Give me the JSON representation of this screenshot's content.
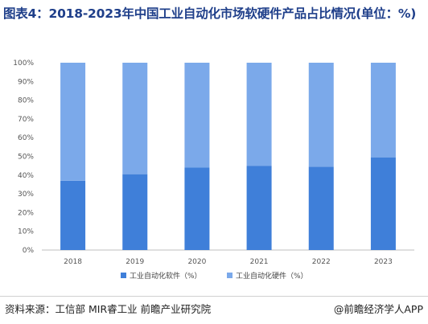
{
  "chart_data": {
    "type": "bar",
    "stacked": true,
    "percent_stacked": true,
    "title": "图表4：2018-2023年中国工业自动化市场软硬件产品占比情况(单位：%)",
    "categories": [
      "2018",
      "2019",
      "2020",
      "2021",
      "2022",
      "2023"
    ],
    "series": [
      {
        "name": "工业自动化软件（%）",
        "values": [
          37,
          40.5,
          44,
          45,
          44.5,
          49.5
        ],
        "color": "#3f7fd9"
      },
      {
        "name": "工业自动化硬件（%）",
        "values": [
          63,
          59.5,
          56,
          55,
          55.5,
          50.5
        ],
        "color": "#7ba9ea"
      }
    ],
    "ylim": [
      0,
      100
    ],
    "y_ticks": [
      "0%",
      "10%",
      "20%",
      "30%",
      "40%",
      "50%",
      "60%",
      "70%",
      "80%",
      "90%",
      "100%"
    ],
    "grid": false,
    "legend_position": "bottom"
  },
  "footer": {
    "source": "资料来源：工信部 MIR睿工业 前瞻产业研究院",
    "brand": "@前瞻经济学人APP"
  }
}
